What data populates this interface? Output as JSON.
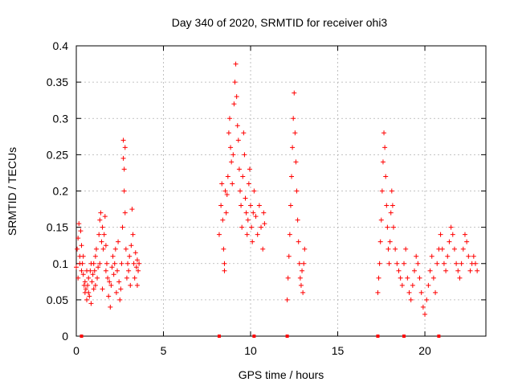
{
  "chart_data": {
    "type": "scatter",
    "title": "Day 340 of 2020, SRMTID for receiver ohi3",
    "xlabel": "GPS time / hours",
    "ylabel": "SRMTID / TECUs",
    "xlim": [
      0,
      23.5
    ],
    "ylim": [
      0,
      0.4
    ],
    "xticks": [
      0,
      5,
      10,
      15,
      20
    ],
    "yticks": [
      0,
      0.05,
      0.1,
      0.15,
      0.2,
      0.25,
      0.3,
      0.35,
      0.4
    ],
    "xtick_labels": [
      "0",
      "5",
      "10",
      "15",
      "20"
    ],
    "ytick_labels": [
      "0",
      "0.05",
      "0.1",
      "0.15",
      "0.2",
      "0.25",
      "0.3",
      "0.35",
      "0.4"
    ],
    "grid": true,
    "marker": "+",
    "color": "#ff0000",
    "zero_markers_x": [
      0.3,
      8.2,
      10.2,
      12.1,
      17.3,
      18.8,
      20.8
    ],
    "series": [
      {
        "name": "SRMTID",
        "points": [
          [
            0.0,
            0.095
          ],
          [
            0.05,
            0.12
          ],
          [
            0.1,
            0.135
          ],
          [
            0.1,
            0.08
          ],
          [
            0.15,
            0.155
          ],
          [
            0.2,
            0.11
          ],
          [
            0.2,
            0.1
          ],
          [
            0.25,
            0.145
          ],
          [
            0.3,
            0.125
          ],
          [
            0.3,
            0.09
          ],
          [
            0.35,
            0.1
          ],
          [
            0.4,
            0.085
          ],
          [
            0.4,
            0.11
          ],
          [
            0.45,
            0.07
          ],
          [
            0.5,
            0.06
          ],
          [
            0.5,
            0.075
          ],
          [
            0.55,
            0.065
          ],
          [
            0.6,
            0.05
          ],
          [
            0.6,
            0.09
          ],
          [
            0.65,
            0.07
          ],
          [
            0.7,
            0.08
          ],
          [
            0.7,
            0.06
          ],
          [
            0.75,
            0.055
          ],
          [
            0.8,
            0.09
          ],
          [
            0.85,
            0.1
          ],
          [
            0.85,
            0.045
          ],
          [
            0.9,
            0.075
          ],
          [
            0.95,
            0.085
          ],
          [
            1.0,
            0.065
          ],
          [
            1.0,
            0.1
          ],
          [
            1.05,
            0.09
          ],
          [
            1.1,
            0.11
          ],
          [
            1.1,
            0.07
          ],
          [
            1.15,
            0.12
          ],
          [
            1.2,
            0.08
          ],
          [
            1.25,
            0.095
          ],
          [
            1.3,
            0.14
          ],
          [
            1.35,
            0.16
          ],
          [
            1.35,
            0.1
          ],
          [
            1.4,
            0.17
          ],
          [
            1.45,
            0.13
          ],
          [
            1.5,
            0.15
          ],
          [
            1.5,
            0.065
          ],
          [
            1.55,
            0.12
          ],
          [
            1.6,
            0.14
          ],
          [
            1.65,
            0.165
          ],
          [
            1.7,
            0.125
          ],
          [
            1.7,
            0.09
          ],
          [
            1.75,
            0.1
          ],
          [
            1.8,
            0.08
          ],
          [
            1.85,
            0.055
          ],
          [
            1.9,
            0.075
          ],
          [
            1.95,
            0.04
          ],
          [
            2.0,
            0.07
          ],
          [
            2.05,
            0.095
          ],
          [
            2.1,
            0.11
          ],
          [
            2.15,
            0.085
          ],
          [
            2.2,
            0.1
          ],
          [
            2.25,
            0.12
          ],
          [
            2.3,
            0.06
          ],
          [
            2.35,
            0.09
          ],
          [
            2.4,
            0.13
          ],
          [
            2.45,
            0.075
          ],
          [
            2.5,
            0.05
          ],
          [
            2.55,
            0.065
          ],
          [
            2.6,
            0.1
          ],
          [
            2.65,
            0.15
          ],
          [
            2.7,
            0.27
          ],
          [
            2.7,
            0.245
          ],
          [
            2.75,
            0.2
          ],
          [
            2.75,
            0.23
          ],
          [
            2.8,
            0.26
          ],
          [
            2.8,
            0.17
          ],
          [
            2.85,
            0.12
          ],
          [
            2.9,
            0.08
          ],
          [
            2.95,
            0.1
          ],
          [
            3.0,
            0.09
          ],
          [
            3.05,
            0.11
          ],
          [
            3.1,
            0.07
          ],
          [
            3.15,
            0.125
          ],
          [
            3.2,
            0.175
          ],
          [
            3.25,
            0.14
          ],
          [
            3.3,
            0.1
          ],
          [
            3.35,
            0.08
          ],
          [
            3.4,
            0.115
          ],
          [
            3.45,
            0.095
          ],
          [
            3.5,
            0.105
          ],
          [
            3.5,
            0.07
          ],
          [
            3.55,
            0.09
          ],
          [
            3.6,
            0.1
          ],
          [
            8.2,
            0.14
          ],
          [
            8.3,
            0.18
          ],
          [
            8.35,
            0.21
          ],
          [
            8.4,
            0.16
          ],
          [
            8.45,
            0.12
          ],
          [
            8.5,
            0.1
          ],
          [
            8.5,
            0.09
          ],
          [
            8.55,
            0.2
          ],
          [
            8.6,
            0.17
          ],
          [
            8.65,
            0.195
          ],
          [
            8.7,
            0.22
          ],
          [
            8.75,
            0.28
          ],
          [
            8.8,
            0.3
          ],
          [
            8.85,
            0.26
          ],
          [
            8.9,
            0.24
          ],
          [
            8.95,
            0.21
          ],
          [
            9.0,
            0.25
          ],
          [
            9.05,
            0.32
          ],
          [
            9.1,
            0.35
          ],
          [
            9.15,
            0.375
          ],
          [
            9.2,
            0.33
          ],
          [
            9.25,
            0.29
          ],
          [
            9.3,
            0.27
          ],
          [
            9.35,
            0.23
          ],
          [
            9.4,
            0.2
          ],
          [
            9.45,
            0.18
          ],
          [
            9.5,
            0.15
          ],
          [
            9.55,
            0.22
          ],
          [
            9.6,
            0.28
          ],
          [
            9.65,
            0.25
          ],
          [
            9.7,
            0.19
          ],
          [
            9.75,
            0.17
          ],
          [
            9.8,
            0.14
          ],
          [
            9.85,
            0.16
          ],
          [
            9.9,
            0.21
          ],
          [
            9.95,
            0.23
          ],
          [
            10.0,
            0.18
          ],
          [
            10.05,
            0.15
          ],
          [
            10.1,
            0.13
          ],
          [
            10.15,
            0.17
          ],
          [
            10.2,
            0.2
          ],
          [
            10.3,
            0.165
          ],
          [
            10.4,
            0.14
          ],
          [
            10.5,
            0.18
          ],
          [
            10.6,
            0.15
          ],
          [
            10.7,
            0.12
          ],
          [
            10.75,
            0.17
          ],
          [
            10.8,
            0.155
          ],
          [
            12.1,
            0.05
          ],
          [
            12.15,
            0.08
          ],
          [
            12.2,
            0.11
          ],
          [
            12.25,
            0.14
          ],
          [
            12.3,
            0.18
          ],
          [
            12.35,
            0.22
          ],
          [
            12.4,
            0.26
          ],
          [
            12.45,
            0.3
          ],
          [
            12.5,
            0.335
          ],
          [
            12.55,
            0.28
          ],
          [
            12.6,
            0.24
          ],
          [
            12.65,
            0.2
          ],
          [
            12.7,
            0.16
          ],
          [
            12.75,
            0.13
          ],
          [
            12.8,
            0.1
          ],
          [
            12.85,
            0.08
          ],
          [
            12.9,
            0.07
          ],
          [
            12.95,
            0.09
          ],
          [
            13.0,
            0.06
          ],
          [
            13.05,
            0.1
          ],
          [
            13.1,
            0.12
          ],
          [
            17.3,
            0.06
          ],
          [
            17.35,
            0.08
          ],
          [
            17.4,
            0.1
          ],
          [
            17.45,
            0.13
          ],
          [
            17.5,
            0.16
          ],
          [
            17.55,
            0.2
          ],
          [
            17.6,
            0.24
          ],
          [
            17.65,
            0.28
          ],
          [
            17.7,
            0.26
          ],
          [
            17.75,
            0.22
          ],
          [
            17.8,
            0.18
          ],
          [
            17.85,
            0.15
          ],
          [
            17.9,
            0.12
          ],
          [
            17.95,
            0.1
          ],
          [
            18.0,
            0.13
          ],
          [
            18.05,
            0.17
          ],
          [
            18.1,
            0.2
          ],
          [
            18.15,
            0.18
          ],
          [
            18.2,
            0.15
          ],
          [
            18.3,
            0.12
          ],
          [
            18.4,
            0.1
          ],
          [
            18.5,
            0.09
          ],
          [
            18.6,
            0.08
          ],
          [
            18.7,
            0.07
          ],
          [
            18.8,
            0.1
          ],
          [
            18.9,
            0.12
          ],
          [
            19.0,
            0.08
          ],
          [
            19.1,
            0.06
          ],
          [
            19.2,
            0.05
          ],
          [
            19.3,
            0.07
          ],
          [
            19.4,
            0.09
          ],
          [
            19.5,
            0.11
          ],
          [
            19.6,
            0.1
          ],
          [
            19.7,
            0.08
          ],
          [
            19.8,
            0.06
          ],
          [
            19.9,
            0.04
          ],
          [
            20.0,
            0.03
          ],
          [
            20.1,
            0.05
          ],
          [
            20.2,
            0.07
          ],
          [
            20.3,
            0.09
          ],
          [
            20.4,
            0.11
          ],
          [
            20.5,
            0.08
          ],
          [
            20.6,
            0.06
          ],
          [
            20.7,
            0.1
          ],
          [
            20.8,
            0.12
          ],
          [
            20.9,
            0.14
          ],
          [
            21.0,
            0.12
          ],
          [
            21.1,
            0.1
          ],
          [
            21.2,
            0.09
          ],
          [
            21.3,
            0.11
          ],
          [
            21.4,
            0.13
          ],
          [
            21.5,
            0.15
          ],
          [
            21.6,
            0.14
          ],
          [
            21.7,
            0.12
          ],
          [
            21.8,
            0.1
          ],
          [
            21.9,
            0.09
          ],
          [
            22.0,
            0.08
          ],
          [
            22.1,
            0.1
          ],
          [
            22.2,
            0.12
          ],
          [
            22.3,
            0.14
          ],
          [
            22.4,
            0.13
          ],
          [
            22.5,
            0.11
          ],
          [
            22.6,
            0.09
          ],
          [
            22.7,
            0.1
          ],
          [
            22.8,
            0.11
          ],
          [
            22.9,
            0.1
          ],
          [
            23.0,
            0.09
          ]
        ]
      }
    ]
  }
}
